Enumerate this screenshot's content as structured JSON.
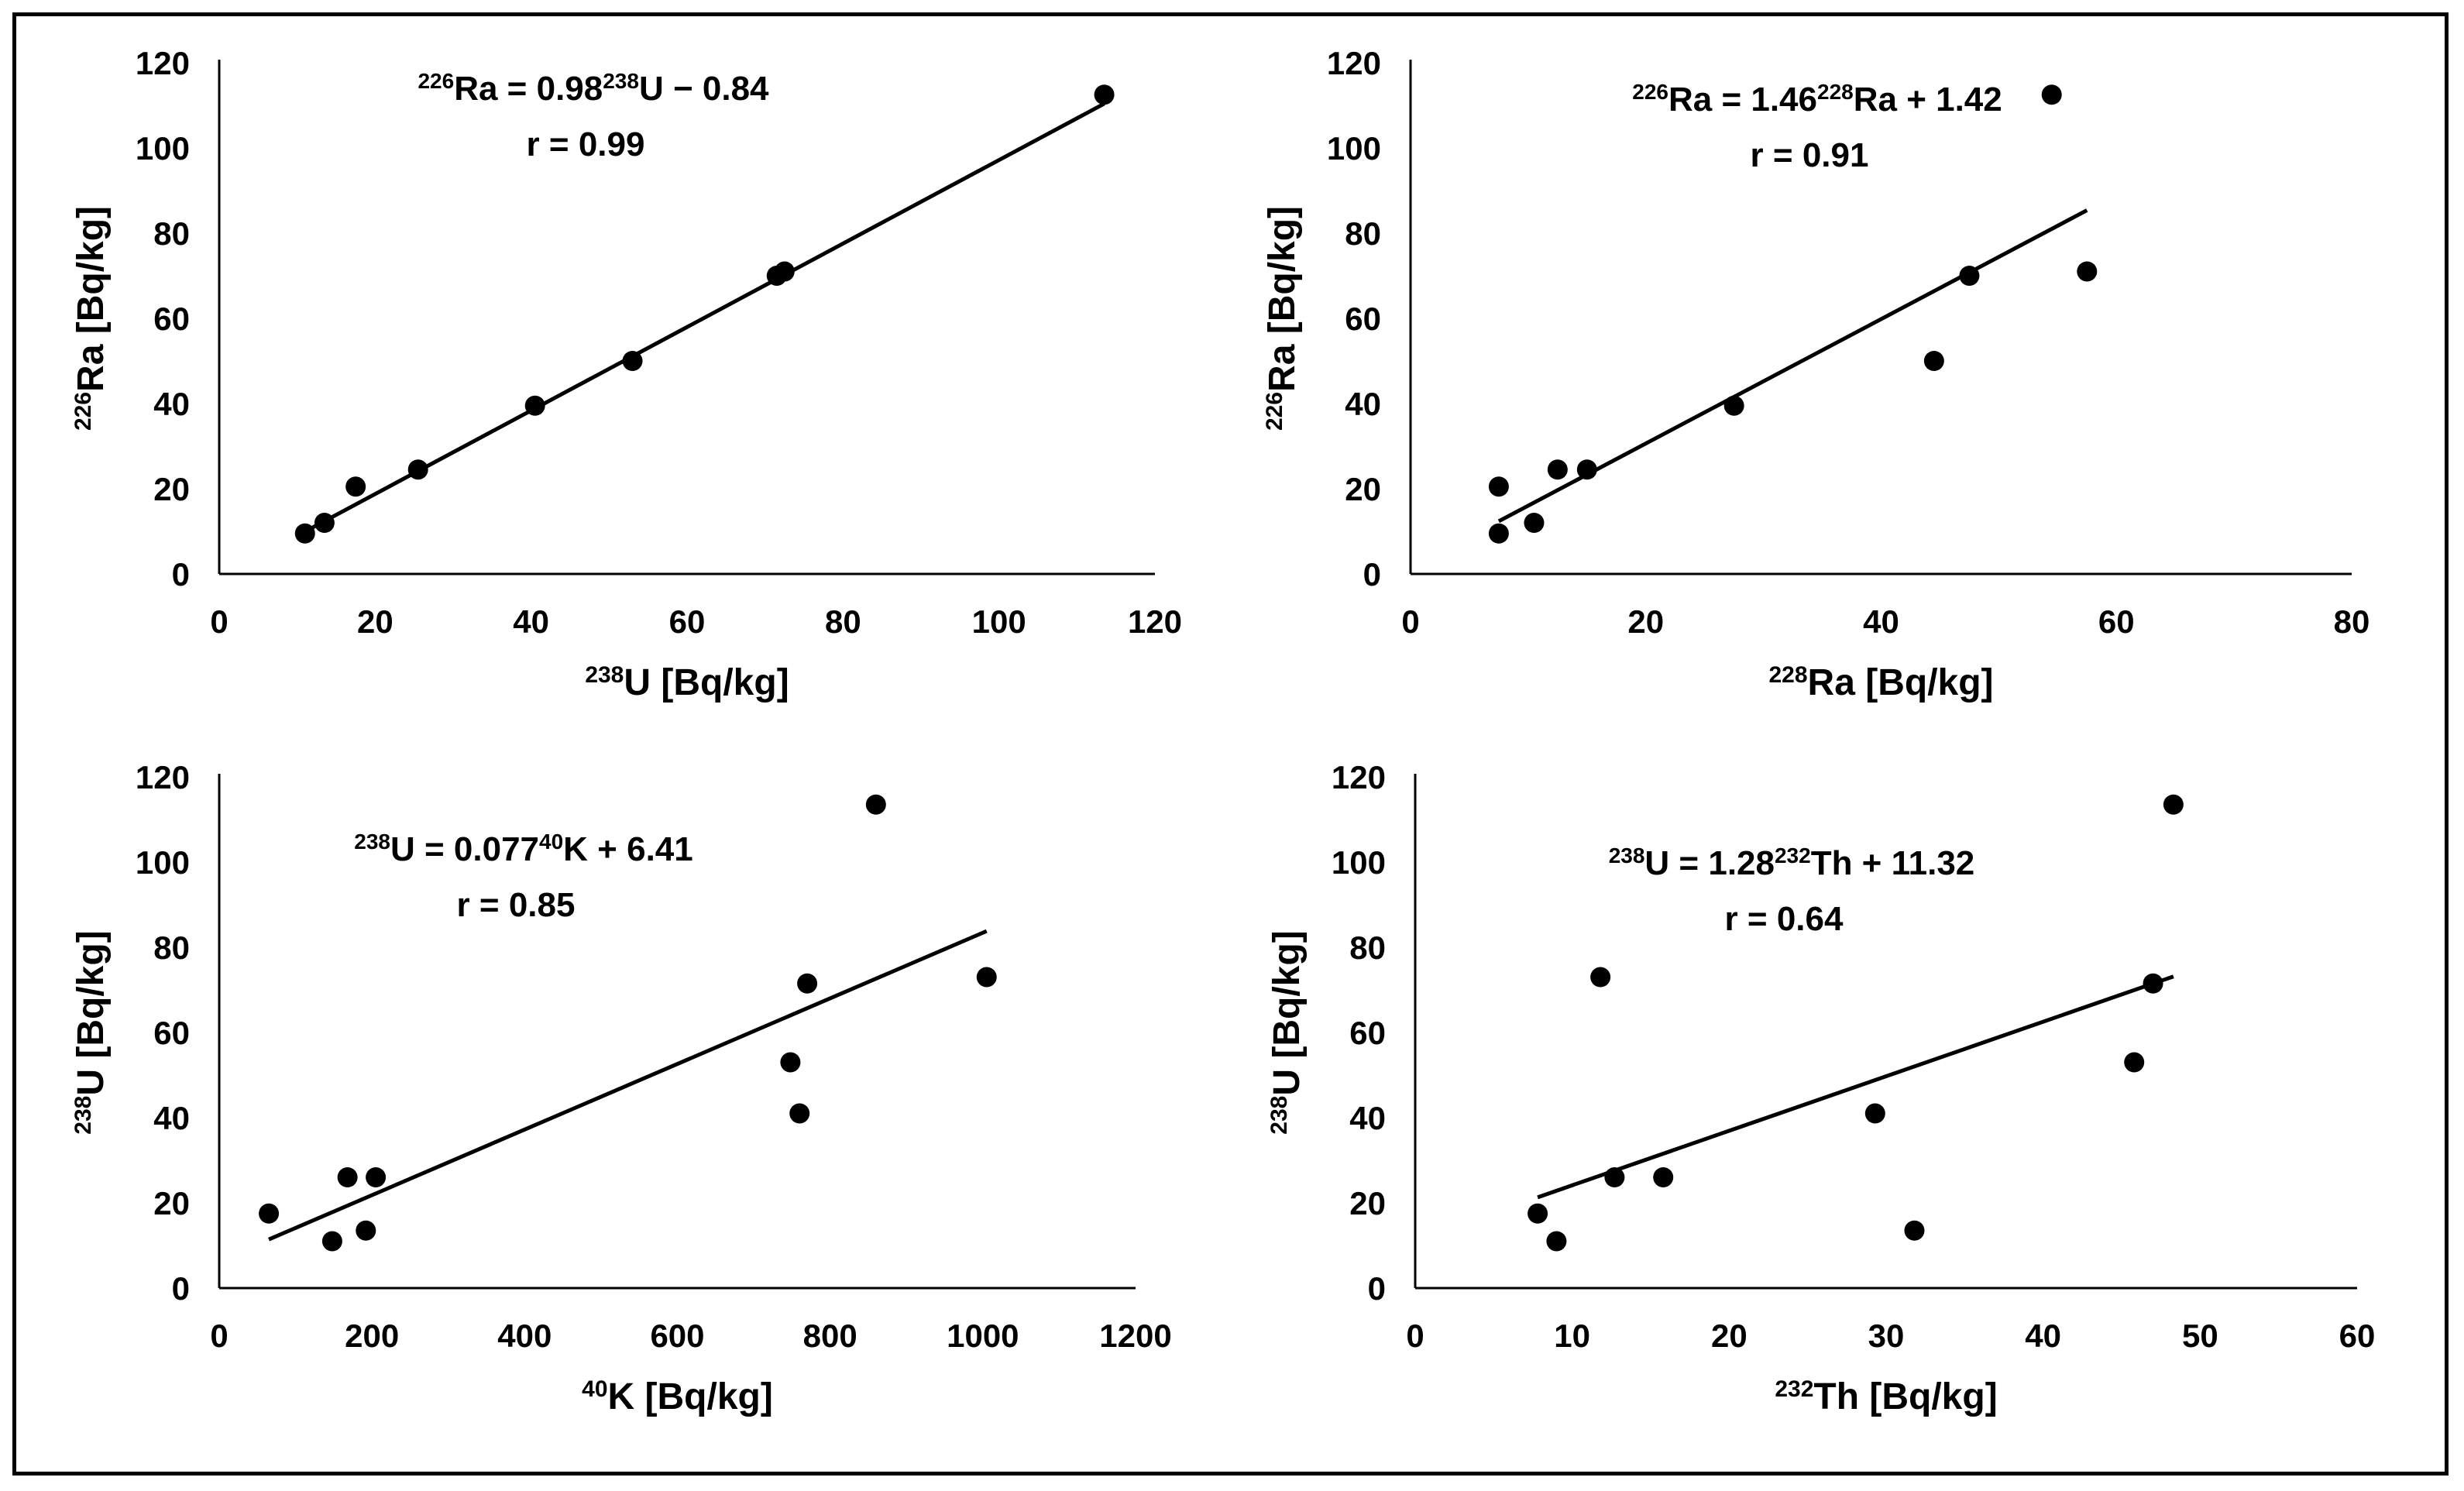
{
  "chart_data": [
    {
      "type": "scatter",
      "equation": {
        "lhs_sup": "226",
        "lhs": "Ra = 0.98",
        "rhs_sup": "238",
        "rhs": "U − 0.84"
      },
      "r_text": "r = 0.99",
      "xlabel": {
        "sup": "238",
        "text": "U [Bq/kg]"
      },
      "ylabel": {
        "sup": "226",
        "text": "Ra [Bq/kg]"
      },
      "xlim": [
        0,
        120
      ],
      "ylim": [
        0,
        120
      ],
      "xticks": [
        "0",
        "20",
        "40",
        "60",
        "80",
        "100",
        "120"
      ],
      "yticks": [
        "0",
        "20",
        "40",
        "60",
        "80",
        "100",
        "120"
      ],
      "points": [
        [
          11,
          9.5
        ],
        [
          13.5,
          12
        ],
        [
          17.5,
          20.5
        ],
        [
          25.5,
          24.5
        ],
        [
          40.5,
          39.5
        ],
        [
          53,
          50
        ],
        [
          71.5,
          70
        ],
        [
          72.5,
          71
        ],
        [
          113.5,
          112.5
        ]
      ],
      "trendline": {
        "slope": 0.98,
        "intercept": -0.84,
        "x_range": [
          11,
          113.5
        ]
      }
    },
    {
      "type": "scatter",
      "equation": {
        "lhs_sup": "226",
        "lhs": "Ra = 1.46",
        "rhs_sup": "228",
        "rhs": "Ra + 1.42"
      },
      "r_text": "r = 0.91",
      "xlabel": {
        "sup": "228",
        "text": "Ra [Bq/kg]"
      },
      "ylabel": {
        "sup": "226",
        "text": "Ra [Bq/kg]"
      },
      "xlim": [
        0,
        80
      ],
      "ylim": [
        0,
        120
      ],
      "xticks": [
        "0",
        "20",
        "40",
        "60",
        "80"
      ],
      "yticks": [
        "0",
        "20",
        "40",
        "60",
        "80",
        "100",
        "120"
      ],
      "points": [
        [
          7.5,
          9.5
        ],
        [
          7.5,
          20.5
        ],
        [
          10.5,
          12
        ],
        [
          12.5,
          24.5
        ],
        [
          15,
          24.5
        ],
        [
          27.5,
          39.5
        ],
        [
          44.5,
          50
        ],
        [
          47.5,
          70
        ],
        [
          54.5,
          112.5
        ],
        [
          57.5,
          71
        ]
      ],
      "trendline": {
        "slope": 1.46,
        "intercept": 1.42,
        "x_range": [
          7.5,
          57.5
        ]
      }
    },
    {
      "type": "scatter",
      "equation": {
        "lhs_sup": "238",
        "lhs": "U = 0.077",
        "rhs_sup": "40",
        "rhs": "K + 6.41"
      },
      "r_text": "r = 0.85",
      "xlabel": {
        "sup": "40",
        "text": "K [Bq/kg]"
      },
      "ylabel": {
        "sup": "238",
        "text": "U [Bq/kg]"
      },
      "xlim": [
        0,
        1200
      ],
      "ylim": [
        0,
        120
      ],
      "xticks": [
        "0",
        "200",
        "400",
        "600",
        "800",
        "1000",
        "1200"
      ],
      "yticks": [
        "0",
        "20",
        "40",
        "60",
        "80",
        "100",
        "120"
      ],
      "points": [
        [
          65,
          17.5
        ],
        [
          148,
          11
        ],
        [
          168,
          26
        ],
        [
          192,
          13.5
        ],
        [
          205,
          26
        ],
        [
          748,
          53
        ],
        [
          760,
          41
        ],
        [
          770,
          71.5
        ],
        [
          860,
          113.5
        ],
        [
          1005,
          73
        ]
      ],
      "trendline": {
        "slope": 0.077,
        "intercept": 6.41,
        "x_range": [
          65,
          1005
        ]
      }
    },
    {
      "type": "scatter",
      "equation": {
        "lhs_sup": "238",
        "lhs": "U = 1.28",
        "rhs_sup": "232",
        "rhs": "Th + 11.32"
      },
      "r_text": "r = 0.64",
      "xlabel": {
        "sup": "232",
        "text": "Th [Bq/kg]"
      },
      "ylabel": {
        "sup": "238",
        "text": "U [Bq/kg]"
      },
      "xlim": [
        0,
        60
      ],
      "ylim": [
        0,
        120
      ],
      "xticks": [
        "0",
        "10",
        "20",
        "30",
        "40",
        "50",
        "60"
      ],
      "yticks": [
        "0",
        "20",
        "40",
        "60",
        "80",
        "100",
        "120"
      ],
      "points": [
        [
          7.8,
          17.5
        ],
        [
          9,
          11
        ],
        [
          11.8,
          73
        ],
        [
          12.7,
          26
        ],
        [
          15.8,
          26
        ],
        [
          29.3,
          41
        ],
        [
          31.8,
          13.5
        ],
        [
          45.8,
          53
        ],
        [
          47,
          71.5
        ],
        [
          48.3,
          113.5
        ]
      ],
      "trendline": {
        "slope": 1.28,
        "intercept": 11.32,
        "x_range": [
          7.8,
          48.3
        ]
      }
    }
  ]
}
